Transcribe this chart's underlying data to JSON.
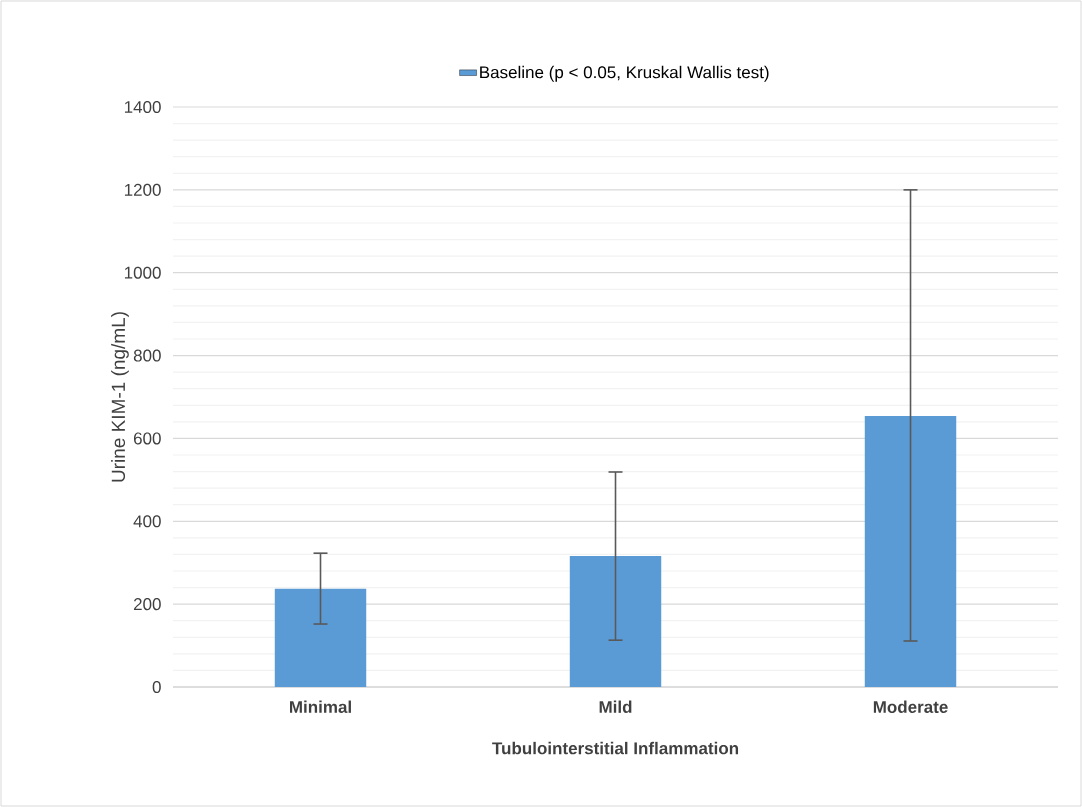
{
  "chart_data": {
    "type": "bar",
    "xlabel": "Tubulointerstitial Inflammation",
    "ylabel": "Urine KIM-1 (ng/mL)",
    "categories": [
      "Minimal",
      "Mild",
      "Moderate"
    ],
    "series": [
      {
        "name": "Baseline (p < 0.05, Kruskal Wallis test)",
        "color": "#5b9bd5",
        "values": [
          237,
          316,
          654
        ],
        "errors": [
          [
            152,
            323
          ],
          [
            113,
            519
          ],
          [
            111,
            1200
          ]
        ]
      }
    ],
    "ylim": [
      0,
      1400
    ],
    "yticks": [
      0,
      200,
      400,
      600,
      800,
      1000,
      1200,
      1400
    ],
    "grid": "y",
    "legend": "top"
  }
}
